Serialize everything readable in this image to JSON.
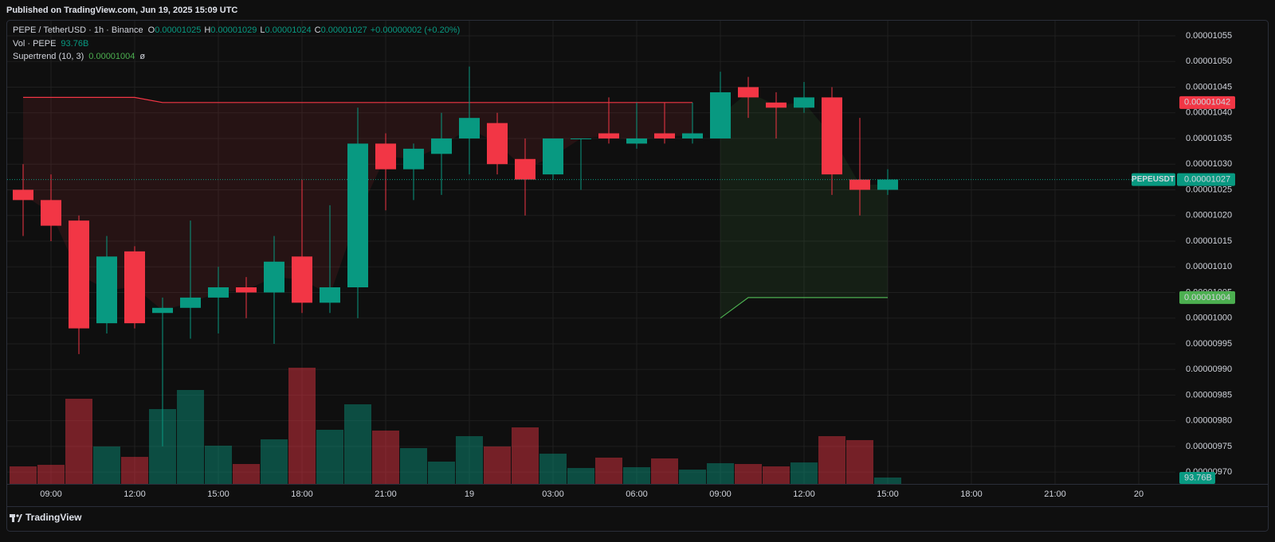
{
  "header": {
    "text": "Published on TradingView.com, Jun 19, 2025 15:09 UTC"
  },
  "chart_data": {
    "type": "candlestick",
    "symbol": "PEPE / TetherUSD · 1h · Binance",
    "ticker": "PEPEUSDT",
    "ohlc_labels": [
      "O",
      "H",
      "L",
      "C"
    ],
    "change": "+0.00000002 (+0.20%)",
    "categories": [
      null,
      "09:00",
      null,
      null,
      "12:00",
      null,
      null,
      "15:00",
      null,
      null,
      "18:00",
      null,
      null,
      "21:00",
      null,
      null,
      "19",
      null,
      null,
      "03:00",
      null,
      null,
      "06:00",
      null,
      null,
      "09:00",
      null,
      null,
      "12:00",
      null,
      null,
      "15:00",
      null,
      null,
      "18:00",
      null,
      null,
      "21:00",
      null,
      null,
      "20",
      null
    ],
    "open": [
      1.025e-05,
      1.023e-05,
      1.019e-05,
      9.99e-06,
      1.013e-05,
      1.001e-05,
      1.002e-05,
      1.004e-05,
      1.006e-05,
      1.005e-05,
      1.012e-05,
      1.003e-05,
      1.006e-05,
      1.034e-05,
      1.029e-05,
      1.032e-05,
      1.035e-05,
      1.038e-05,
      1.031e-05,
      1.028e-05,
      1.035e-05,
      1.036e-05,
      1.034e-05,
      1.036e-05,
      1.035e-05,
      1.035e-05,
      1.045e-05,
      1.042e-05,
      1.041e-05,
      1.043e-05,
      1.027e-05,
      1.025e-05,
      null,
      null,
      null,
      null,
      null,
      null,
      null,
      null,
      null,
      null
    ],
    "high": [
      1.03e-05,
      1.028e-05,
      1.02e-05,
      1.016e-05,
      1.014e-05,
      1.004e-05,
      1.019e-05,
      1.01e-05,
      1.008e-05,
      1.016e-05,
      1.027e-05,
      1.022e-05,
      1.041e-05,
      1.036e-05,
      1.034e-05,
      1.04e-05,
      1.049e-05,
      1.04e-05,
      1.035e-05,
      1.035e-05,
      1.035e-05,
      1.043e-05,
      1.042e-05,
      1.042e-05,
      1.042e-05,
      1.048e-05,
      1.047e-05,
      1.044e-05,
      1.046e-05,
      1.045e-05,
      1.039e-05,
      1.029e-05,
      null,
      null,
      null,
      null,
      null,
      null,
      null,
      null,
      null,
      null
    ],
    "low": [
      1.016e-05,
      1.015e-05,
      9.93e-06,
      9.97e-06,
      9.98e-06,
      9.75e-06,
      9.96e-06,
      9.97e-06,
      1e-05,
      9.95e-06,
      1.001e-05,
      1.001e-05,
      1e-05,
      1.021e-05,
      1.023e-05,
      1.024e-05,
      1.028e-05,
      1.028e-05,
      1.02e-05,
      1.027e-05,
      1.025e-05,
      1.034e-05,
      1.033e-05,
      1.034e-05,
      1.034e-05,
      1.035e-05,
      1.039e-05,
      1.035e-05,
      1.04e-05,
      1.024e-05,
      1.02e-05,
      1.024e-05,
      null,
      null,
      null,
      null,
      null,
      null,
      null,
      null,
      null,
      null
    ],
    "close": [
      1.023e-05,
      1.018e-05,
      9.98e-06,
      1.012e-05,
      9.99e-06,
      1.002e-05,
      1.004e-05,
      1.006e-05,
      1.005e-05,
      1.011e-05,
      1.003e-05,
      1.006e-05,
      1.034e-05,
      1.029e-05,
      1.033e-05,
      1.035e-05,
      1.039e-05,
      1.03e-05,
      1.027e-05,
      1.035e-05,
      1.035e-05,
      1.035e-05,
      1.035e-05,
      1.035e-05,
      1.036e-05,
      1.044e-05,
      1.043e-05,
      1.041e-05,
      1.043e-05,
      1.028e-05,
      1.025e-05,
      1.027e-05,
      null,
      null,
      null,
      null,
      null,
      null,
      null,
      null,
      null,
      null
    ],
    "up_color": "#089981",
    "down_color": "#f23645",
    "volume": {
      "name": "Vol · PEPE",
      "values": [
        258,
        281,
        1254,
        551,
        398,
        1102,
        1383,
        563,
        293,
        656,
        1711,
        797,
        1172,
        785,
        527,
        328,
        703,
        551,
        832,
        445,
        234,
        387,
        246,
        375,
        211,
        305,
        293,
        258,
        316,
        703,
        645,
        93.76,
        null,
        null,
        null,
        null,
        null,
        null,
        null,
        null,
        null,
        null
      ],
      "value_labels": [
        null,
        null,
        null,
        null,
        null,
        null,
        null,
        null,
        null,
        null,
        null,
        null,
        null,
        null,
        null,
        null,
        null,
        null,
        null,
        null,
        null,
        null,
        null,
        null,
        null,
        null,
        null,
        null,
        null,
        null,
        null,
        "93.76B",
        null,
        null,
        null,
        null,
        null,
        null,
        null,
        null,
        null,
        null
      ]
    },
    "supertrend": {
      "name": "Supertrend (10, 3)",
      "symbol": "ø",
      "series": [
        {
          "color": "#f23645",
          "values": [
            1.043e-05,
            1.043e-05,
            1.043e-05,
            1.043e-05,
            1.043e-05,
            1.042e-05,
            1.042e-05,
            1.042e-05,
            1.042e-05,
            1.042e-05,
            1.042e-05,
            1.042e-05,
            1.042e-05,
            1.042e-05,
            1.042e-05,
            1.042e-05,
            1.042e-05,
            1.042e-05,
            1.042e-05,
            1.042e-05,
            1.042e-05,
            1.042e-05,
            1.042e-05,
            1.042e-05,
            1.042e-05,
            null,
            null,
            null,
            null,
            null,
            null,
            null,
            null,
            null,
            null,
            null,
            null,
            null,
            null,
            null,
            null,
            null
          ]
        },
        {
          "color": "#4caf50",
          "values": [
            null,
            null,
            null,
            null,
            null,
            null,
            null,
            null,
            null,
            null,
            null,
            null,
            null,
            null,
            null,
            null,
            null,
            null,
            null,
            null,
            null,
            null,
            null,
            null,
            null,
            1e-05,
            1.004e-05,
            1.004e-05,
            1.004e-05,
            1.004e-05,
            1.004e-05,
            1.004e-05,
            null,
            null,
            null,
            null,
            null,
            null,
            null,
            null,
            null,
            null
          ]
        }
      ]
    },
    "ylim": [
      9.677e-06,
      1.0581e-05
    ],
    "yticks": [
      1.055e-05,
      {
        "value": 1.05e-05,
        "label": "0.00001050"
      },
      1.045e-05,
      {
        "value": 1.04e-05,
        "label": "0.00001040"
      },
      1.035e-05,
      {
        "value": 1.03e-05,
        "label": "0.00001030"
      },
      1.025e-05,
      {
        "value": 1.02e-05,
        "label": "0.00001020"
      },
      1.015e-05,
      {
        "value": 1.01e-05,
        "label": "0.00001010"
      },
      1.005e-05,
      {
        "value": 1e-05,
        "label": "0.00001000"
      },
      9.95e-06,
      {
        "value": 9.9e-06,
        "label": "0.00000990"
      },
      9.85e-06,
      {
        "value": 9.8e-06,
        "label": "0.00000980"
      },
      9.75e-06,
      {
        "value": 9.7e-06,
        "label": "0.00000970"
      }
    ],
    "grid": true
  },
  "footer": {
    "brand": "TradingView"
  }
}
